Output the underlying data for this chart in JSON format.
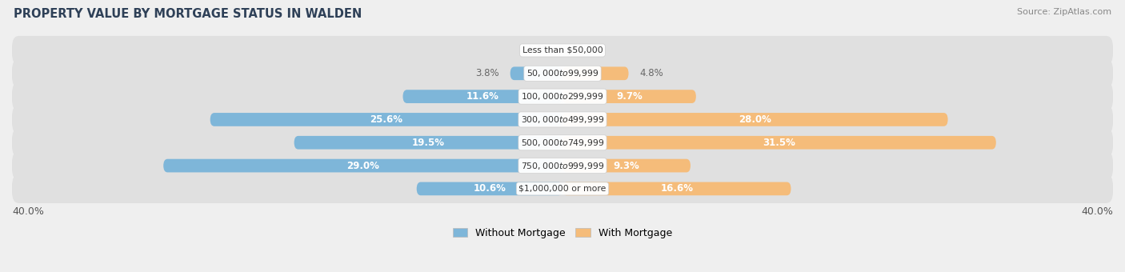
{
  "title": "PROPERTY VALUE BY MORTGAGE STATUS IN WALDEN",
  "source": "Source: ZipAtlas.com",
  "categories": [
    "Less than $50,000",
    "$50,000 to $99,999",
    "$100,000 to $299,999",
    "$300,000 to $499,999",
    "$500,000 to $749,999",
    "$750,000 to $999,999",
    "$1,000,000 or more"
  ],
  "without_mortgage": [
    0.0,
    3.8,
    11.6,
    25.6,
    19.5,
    29.0,
    10.6
  ],
  "with_mortgage": [
    0.0,
    4.8,
    9.7,
    28.0,
    31.5,
    9.3,
    16.6
  ],
  "xlim": 40.0,
  "color_without": "#7EB6D9",
  "color_with": "#F5BC7A",
  "bg_color": "#EFEFEF",
  "title_color": "#2E4057",
  "source_color": "#888888",
  "label_color_inside": "#FFFFFF",
  "label_color_outside": "#666666",
  "legend_labels": [
    "Without Mortgage",
    "With Mortgage"
  ],
  "x_axis_label_left": "40.0%",
  "x_axis_label_right": "40.0%"
}
